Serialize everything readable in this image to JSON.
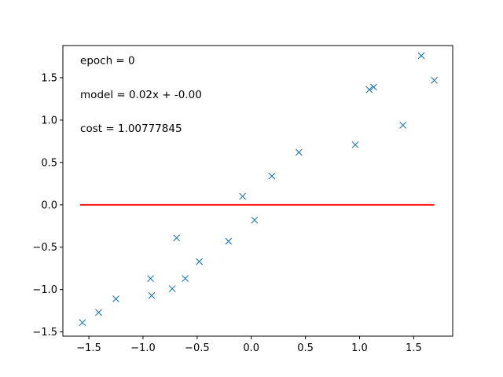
{
  "chart_data": {
    "type": "scatter",
    "title": "",
    "xlabel": "",
    "ylabel": "",
    "xlim": [
      -1.74,
      1.86
    ],
    "ylim": [
      -1.55,
      1.88
    ],
    "grid": false,
    "xticks": [
      -1.5,
      -1.0,
      -0.5,
      0.0,
      0.5,
      1.0,
      1.5
    ],
    "xtick_labels": [
      "−1.5",
      "−1.0",
      "−0.5",
      "0.0",
      "0.5",
      "1.0",
      "1.5"
    ],
    "yticks": [
      -1.5,
      -1.0,
      -0.5,
      0.0,
      0.5,
      1.0,
      1.5
    ],
    "ytick_labels": [
      "−1.5",
      "−1.0",
      "−0.5",
      "0.0",
      "0.5",
      "1.0",
      "1.5"
    ],
    "points": {
      "color": "#1f77b4",
      "marker": "x",
      "x": [
        -1.56,
        -1.41,
        -1.25,
        -0.93,
        -0.92,
        -0.73,
        -0.69,
        -0.61,
        -0.48,
        -0.21,
        -0.08,
        0.03,
        0.19,
        0.44,
        0.96,
        1.09,
        1.13,
        1.4,
        1.57,
        1.69
      ],
      "y": [
        -1.39,
        -1.27,
        -1.11,
        -0.87,
        -1.07,
        -0.99,
        -0.39,
        -0.87,
        -0.67,
        -0.43,
        0.1,
        -0.18,
        0.34,
        0.62,
        0.71,
        1.36,
        1.39,
        0.94,
        1.76,
        1.47
      ]
    },
    "model_line": {
      "color": "#ff0000",
      "x": [
        -1.58,
        1.69
      ],
      "y": [
        0.0,
        0.0
      ]
    },
    "annotations": [
      {
        "text": "epoch = 0",
        "x": -1.58,
        "y": 1.66
      },
      {
        "text": "model = 0.02x + -0.00",
        "x": -1.58,
        "y": 1.26
      },
      {
        "text": "cost = 1.00777845",
        "x": -1.58,
        "y": 0.86
      }
    ]
  }
}
